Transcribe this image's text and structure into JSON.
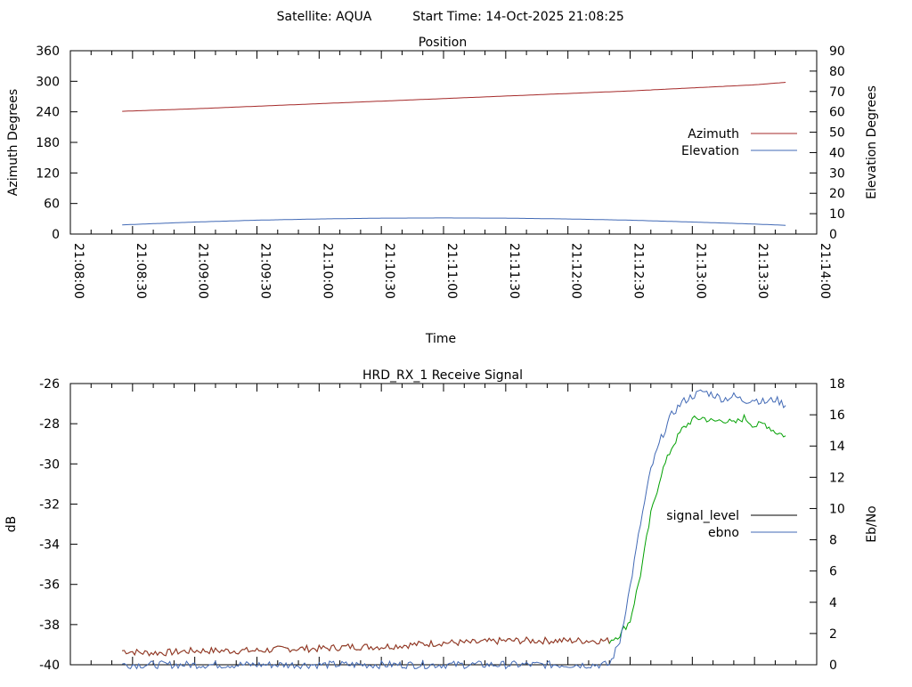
{
  "header": {
    "satellite": "Satellite: AQUA",
    "start_time": "Start Time: 14-Oct-2025 21:08:25"
  },
  "colors": {
    "azimuth": "#a52a2a",
    "elevation": "#4169b5",
    "signal_level_high": "#00a000",
    "signal_level_low": "#a52a2a",
    "ebno": "#4169b5",
    "frame": "#000000"
  },
  "chart_data": [
    {
      "type": "line",
      "title": "Position",
      "xlabel": "Time",
      "ylabel": "Azimuth Degrees",
      "y2label": "Elevation Degrees",
      "xlim": [
        "21:08:00",
        "21:14:00"
      ],
      "ylim": [
        0,
        360
      ],
      "y2lim": [
        0,
        90
      ],
      "x_ticks": [
        "21:08:00",
        "21:08:30",
        "21:09:00",
        "21:09:30",
        "21:10:00",
        "21:10:30",
        "21:11:00",
        "21:11:30",
        "21:12:00",
        "21:12:30",
        "21:13:00",
        "21:13:30",
        "21:14:00"
      ],
      "y_ticks": [
        "0",
        "60",
        "120",
        "180",
        "240",
        "300",
        "360"
      ],
      "y2_ticks": [
        "0",
        "10",
        "20",
        "30",
        "40",
        "50",
        "60",
        "70",
        "80",
        "90"
      ],
      "legend_position": "right",
      "grid": false,
      "series": [
        {
          "name": "Azimuth",
          "axis": "left",
          "x": [
            "21:08:25",
            "21:09:00",
            "21:09:30",
            "21:10:00",
            "21:10:30",
            "21:11:00",
            "21:11:30",
            "21:12:00",
            "21:12:30",
            "21:13:00",
            "21:13:30",
            "21:13:45"
          ],
          "values": [
            241,
            246,
            251,
            256,
            261,
            266,
            271,
            276,
            281,
            287,
            293,
            298
          ]
        },
        {
          "name": "Elevation",
          "axis": "right",
          "x": [
            "21:08:25",
            "21:09:00",
            "21:09:30",
            "21:10:00",
            "21:10:30",
            "21:11:00",
            "21:11:30",
            "21:12:00",
            "21:12:30",
            "21:13:00",
            "21:13:30",
            "21:13:45"
          ],
          "values": [
            4.5,
            5.9,
            6.8,
            7.4,
            7.8,
            7.9,
            7.8,
            7.4,
            6.8,
            5.9,
            4.9,
            4.3
          ]
        }
      ]
    },
    {
      "type": "line",
      "title": "HRD_RX_1 Receive Signal",
      "ylabel": "dB",
      "y2label": "Eb/No",
      "xlim": [
        "21:08:00",
        "21:14:00"
      ],
      "ylim": [
        -40,
        -26
      ],
      "y2lim": [
        0,
        18
      ],
      "y_ticks": [
        "-40",
        "-38",
        "-36",
        "-34",
        "-32",
        "-30",
        "-28",
        "-26"
      ],
      "y2_ticks": [
        "0",
        "2",
        "4",
        "6",
        "8",
        "10",
        "12",
        "14",
        "16",
        "18"
      ],
      "legend_position": "right",
      "grid": false,
      "series": [
        {
          "name": "signal_level",
          "axis": "left",
          "x": [
            "21:08:25",
            "21:08:35",
            "21:08:45",
            "21:09:00",
            "21:09:15",
            "21:09:30",
            "21:09:45",
            "21:10:00",
            "21:10:15",
            "21:10:30",
            "21:10:45",
            "21:11:00",
            "21:11:15",
            "21:11:30",
            "21:11:45",
            "21:12:00",
            "21:12:10",
            "21:12:20",
            "21:12:25",
            "21:12:30",
            "21:12:35",
            "21:12:40",
            "21:12:45",
            "21:12:50",
            "21:12:55",
            "21:13:00",
            "21:13:05",
            "21:13:10",
            "21:13:15",
            "21:13:20",
            "21:13:25",
            "21:13:30",
            "21:13:35",
            "21:13:40",
            "21:13:45"
          ],
          "values": [
            -39.3,
            -39.4,
            -39.4,
            -39.3,
            -39.3,
            -39.3,
            -39.2,
            -39.2,
            -39.1,
            -39.1,
            -39.0,
            -38.9,
            -38.9,
            -38.8,
            -38.8,
            -38.8,
            -38.8,
            -38.8,
            -38.5,
            -37.8,
            -35.5,
            -32.5,
            -30.5,
            -29.2,
            -28.3,
            -27.8,
            -27.7,
            -27.9,
            -27.8,
            -28.0,
            -27.7,
            -28.1,
            -28.0,
            -28.4,
            -28.6
          ]
        },
        {
          "name": "ebno",
          "axis": "right",
          "x": [
            "21:08:25",
            "21:12:15",
            "21:12:20",
            "21:12:25",
            "21:12:30",
            "21:12:35",
            "21:12:40",
            "21:12:45",
            "21:12:50",
            "21:12:55",
            "21:13:00",
            "21:13:05",
            "21:13:10",
            "21:13:15",
            "21:13:20",
            "21:13:25",
            "21:13:30",
            "21:13:35",
            "21:13:40",
            "21:13:45"
          ],
          "values": [
            0,
            0,
            0,
            1.5,
            5.0,
            9.0,
            12.5,
            14.5,
            16.0,
            16.8,
            17.2,
            17.5,
            17.3,
            17.0,
            17.2,
            16.9,
            17.0,
            16.8,
            17.0,
            16.6
          ]
        }
      ]
    }
  ]
}
